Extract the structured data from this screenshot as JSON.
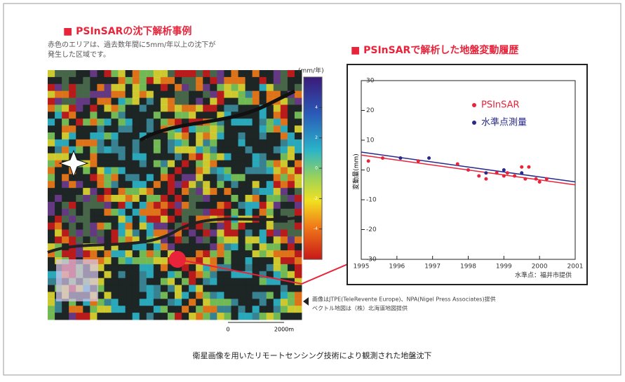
{
  "map": {
    "title": "■ PSInSARの沈下解析事例",
    "description": [
      "赤色のエリアは、過去数年間に5mm/年以上の沈下が",
      "発生した区域です。"
    ],
    "colorbar_unit": "(mm/年)",
    "colorbar_ticks": [
      4,
      2,
      0,
      -2,
      -4
    ],
    "colorbar_lim": [
      6,
      -6
    ],
    "scale_labels": [
      "0",
      "2000m"
    ],
    "credits": [
      "画像はJTPE(TeleRevente Europe)、NPA(Nigel Press Associates)提供",
      "ベクトル地図は（株）北海道地図提供"
    ]
  },
  "chart_data": {
    "type": "scatter",
    "title": "■ PSInSARで解析した地盤変動履歴",
    "y_label": "変動量(mm)",
    "note": "水準点：福井市提供",
    "xlim": [
      1995,
      2001
    ],
    "xticks": [
      1995,
      1996,
      1997,
      1998,
      1999,
      2000,
      2001
    ],
    "ylim": [
      -30,
      30
    ],
    "yticks": [
      30,
      20,
      10,
      0,
      -10,
      -20,
      -30
    ],
    "series": [
      {
        "name": "PSInSAR",
        "color": "#e8233a",
        "x": [
          1995.2,
          1995.6,
          1996.6,
          1997.7,
          1998.0,
          1998.3,
          1998.5,
          1998.8,
          1999.0,
          1999.1,
          1999.3,
          1999.5,
          1999.6,
          1999.7,
          1999.9,
          2000.0,
          2000.2
        ],
        "values": [
          3,
          4,
          3,
          2,
          0,
          -2,
          -3,
          -1,
          -2,
          -1,
          -2,
          1,
          -3,
          1,
          -3,
          -4,
          -3
        ]
      },
      {
        "name": "水準点測量",
        "color": "#2a2a8c",
        "x": [
          1996.1,
          1996.9,
          1998.5,
          1999.0,
          1999.5
        ],
        "values": [
          4,
          4,
          -1,
          0,
          -1
        ]
      }
    ],
    "trends": [
      {
        "color": "#e8233a",
        "x": [
          1995,
          2001
        ],
        "values": [
          5,
          -5
        ]
      },
      {
        "color": "#2a2a8c",
        "x": [
          1995,
          2001
        ],
        "values": [
          6,
          -4
        ]
      }
    ]
  },
  "caption": "衛星画像を用いたリモートセンシング技術により観測された地盤沈下"
}
